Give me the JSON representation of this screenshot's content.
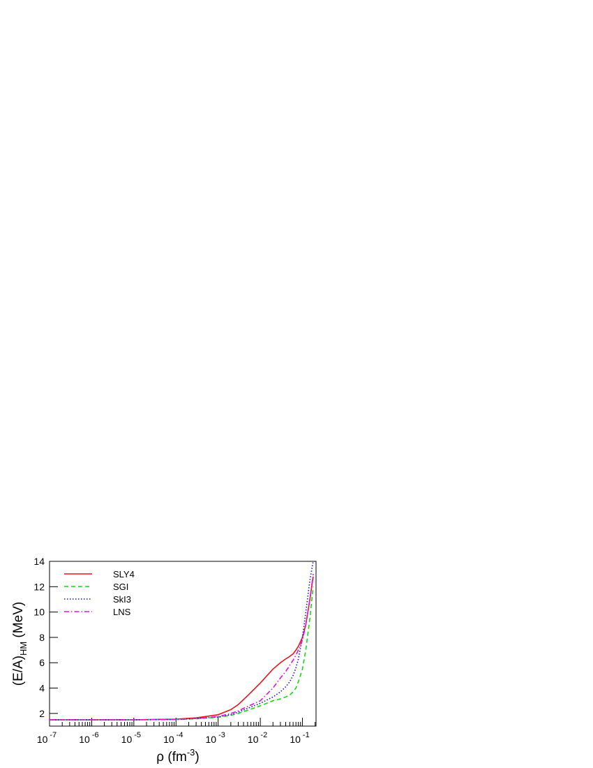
{
  "chart_data": {
    "type": "line",
    "x_label": [
      "ρ (fm",
      "-3",
      ")"
    ],
    "y_label": [
      "(E/A)",
      "HM",
      " (MeV)"
    ],
    "x": [
      1e-07,
      1e-06,
      1e-05,
      0.0001,
      0.0003,
      0.001,
      0.002,
      0.003,
      0.005,
      0.01,
      0.02,
      0.03,
      0.04,
      0.05,
      0.06,
      0.07,
      0.08,
      0.1,
      0.12,
      0.15,
      0.18
    ],
    "series": [
      {
        "name": "SLY4",
        "color": "#e8141c",
        "dash": "solid",
        "values": [
          1.5,
          1.5,
          1.5,
          1.55,
          1.65,
          1.9,
          2.3,
          2.7,
          3.4,
          4.4,
          5.5,
          6.0,
          6.3,
          6.5,
          6.7,
          7.0,
          7.3,
          8.0,
          9.0,
          11.0,
          12.8
        ]
      },
      {
        "name": "SGI",
        "color": "#14d814",
        "dash": "dashed",
        "values": [
          1.5,
          1.5,
          1.5,
          1.52,
          1.58,
          1.7,
          1.85,
          2.0,
          2.25,
          2.6,
          3.0,
          3.15,
          3.3,
          3.45,
          3.7,
          4.0,
          4.5,
          5.5,
          7.0,
          9.5,
          12.0
        ]
      },
      {
        "name": "SkI3",
        "color": "#1414d0",
        "dash": "dotted",
        "values": [
          1.5,
          1.5,
          1.5,
          1.52,
          1.6,
          1.72,
          1.9,
          2.1,
          2.4,
          2.8,
          3.3,
          3.7,
          4.1,
          4.5,
          5.0,
          5.6,
          6.3,
          8.0,
          10.0,
          12.5,
          14.0
        ]
      },
      {
        "name": "LNS",
        "color": "#e014e0",
        "dash": "dashdot",
        "values": [
          1.5,
          1.5,
          1.5,
          1.53,
          1.6,
          1.75,
          2.0,
          2.2,
          2.55,
          3.0,
          4.0,
          4.8,
          5.3,
          5.8,
          6.2,
          6.6,
          7.0,
          7.8,
          9.0,
          11.0,
          13.0
        ]
      }
    ],
    "x_log": true,
    "xlim": [
      1e-07,
      0.21
    ],
    "xticks": [
      {
        "value": 1e-07,
        "label": "10-7"
      },
      {
        "value": 1e-06,
        "label": "10-6"
      },
      {
        "value": 1e-05,
        "label": "10-5"
      },
      {
        "value": 0.0001,
        "label": "10-4"
      },
      {
        "value": 0.001,
        "label": "10-3"
      },
      {
        "value": 0.01,
        "label": "10-2"
      },
      {
        "value": 0.1,
        "label": "10-1"
      }
    ],
    "ylim": [
      1,
      14
    ],
    "yticks": [
      2,
      4,
      6,
      8,
      10,
      12,
      14
    ],
    "legend": "upper left"
  }
}
